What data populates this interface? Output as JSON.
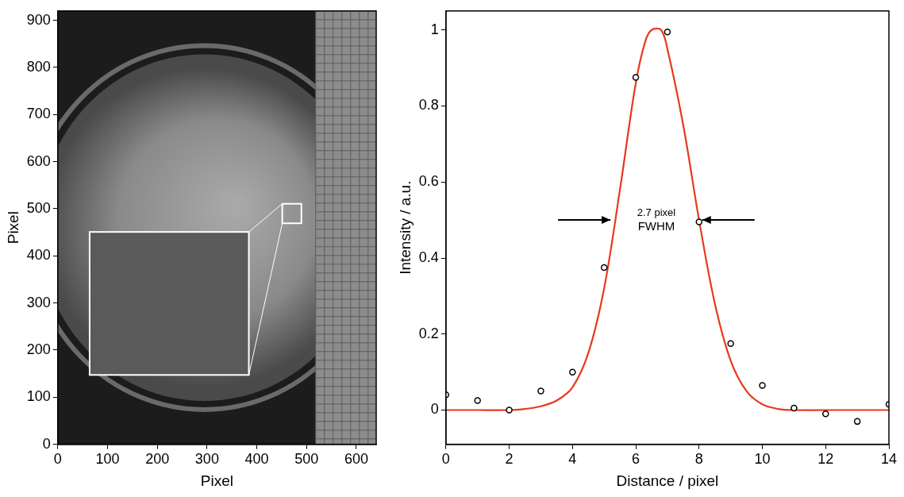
{
  "chart_data": [
    {
      "type": "image",
      "xlabel": "Pixel",
      "ylabel": "Pixel",
      "xlim": [
        0,
        640
      ],
      "ylim": [
        0,
        920
      ],
      "xticks": [
        0,
        100,
        200,
        300,
        400,
        500,
        600
      ],
      "yticks": [
        0,
        100,
        200,
        300,
        400,
        500,
        600,
        700,
        800,
        900
      ],
      "grid": false
    },
    {
      "type": "scatter",
      "xlabel": "Distance / pixel",
      "ylabel": "Intensity / a.u.",
      "xlim": [
        0,
        14
      ],
      "ylim": [
        -0.09,
        1.05
      ],
      "xticks": [
        0,
        2,
        4,
        6,
        8,
        10,
        12,
        14
      ],
      "yticks": [
        0,
        0.2,
        0.4,
        0.6,
        0.8,
        1
      ],
      "grid": false,
      "series": [
        {
          "type": "line",
          "color": "#e8391d",
          "line_style": "solid",
          "x": [
            0,
            1,
            2,
            2.5,
            3,
            3.5,
            4,
            4.5,
            5,
            5.5,
            6,
            6.3,
            6.5,
            6.8,
            7,
            7.5,
            8,
            8.5,
            9,
            9.5,
            10,
            10.5,
            11,
            12,
            13,
            14
          ],
          "values": [
            0,
            0,
            0,
            0.003,
            0.01,
            0.025,
            0.06,
            0.15,
            0.32,
            0.58,
            0.86,
            0.97,
            1,
            1,
            0.95,
            0.75,
            0.5,
            0.28,
            0.13,
            0.05,
            0.015,
            0.003,
            0,
            0,
            0,
            0
          ]
        },
        {
          "type": "scatter",
          "color": "#000000",
          "marker": "circle",
          "x": [
            0,
            1,
            2,
            3,
            4,
            5,
            6,
            7,
            8,
            9,
            10,
            11,
            12,
            13,
            14
          ],
          "values": [
            0.04,
            0.025,
            0,
            0.05,
            0.1,
            0.375,
            0.875,
            0.995,
            0.495,
            0.175,
            0.065,
            0.005,
            -0.01,
            -0.03,
            0.015
          ]
        }
      ],
      "annotation": {
        "text": [
          "2.7 pixel",
          "FWHM"
        ],
        "x_from": 5.3,
        "x_to": 8.0,
        "y": 0.5
      }
    }
  ]
}
